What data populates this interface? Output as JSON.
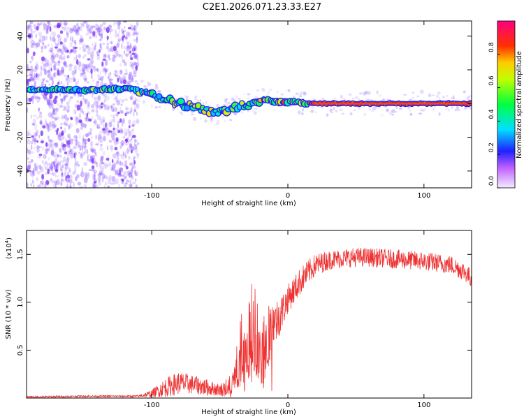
{
  "title": "C2E1.2026.071.23.33.E27",
  "colors": {
    "snr_line": "#ee3333",
    "frame": "#000000",
    "spectro_scatter": "#7a3cff"
  },
  "chart_data": [
    {
      "type": "heatmap",
      "name": "spectrogram",
      "xlabel": "Height of straight line (km)",
      "ylabel": "Frequency (Hz)",
      "xlim": [
        -192,
        135
      ],
      "ylim": [
        -50,
        49
      ],
      "xticks": [
        -100,
        0,
        100
      ],
      "yticks": [
        -40,
        -20,
        0,
        20,
        40
      ],
      "ridge_x": [
        -192,
        -170,
        -150,
        -130,
        -120,
        -110,
        -100,
        -90,
        -80,
        -70,
        -60,
        -55,
        -50,
        -45,
        -40,
        -35,
        -30,
        -25,
        -20,
        -10,
        0,
        10,
        20,
        40,
        60,
        80,
        100,
        120,
        135
      ],
      "ridge_freq": [
        8,
        8,
        8,
        8.5,
        9,
        8,
        5,
        2,
        0,
        -2,
        -4,
        -5,
        -5,
        -4,
        -2,
        -1,
        -1,
        1,
        2,
        1.5,
        1,
        0.5,
        0,
        0,
        0,
        0,
        0,
        0,
        0
      ],
      "colorbar": {
        "label": "Normalized spectral amplitude",
        "range": [
          0,
          1
        ],
        "ticks": [
          "0.0",
          "0.2",
          "0.4",
          "0.6",
          "0.8"
        ],
        "tick_values": [
          0,
          0.2,
          0.4,
          0.6,
          0.8
        ],
        "stops": [
          {
            "v": 0.0,
            "c": "#f2ecff"
          },
          {
            "v": 0.12,
            "c": "#c060ff"
          },
          {
            "v": 0.22,
            "c": "#2020ff"
          },
          {
            "v": 0.35,
            "c": "#00e0ff"
          },
          {
            "v": 0.5,
            "c": "#00ff40"
          },
          {
            "v": 0.65,
            "c": "#c0ff00"
          },
          {
            "v": 0.75,
            "c": "#ffcc00"
          },
          {
            "v": 0.85,
            "c": "#ff3000"
          },
          {
            "v": 1.0,
            "c": "#ff0080"
          }
        ]
      }
    },
    {
      "type": "line",
      "name": "snr",
      "xlabel": "Height of straight line (km)",
      "ylabel": "SNR (10 * v/v)",
      "multiplier": "(x10",
      "multiplier_exp": "4",
      "xlim": [
        -192,
        135
      ],
      "ylim": [
        0,
        1.75
      ],
      "xticks": [
        -100,
        0,
        100
      ],
      "yticks": [
        0.5,
        1.0,
        1.5
      ],
      "ytick_labels": [
        "0.5",
        "1.0",
        "1.5"
      ],
      "envelope_x": [
        -192,
        -150,
        -110,
        -100,
        -90,
        -80,
        -70,
        -60,
        -50,
        -40,
        -35,
        -30,
        -25,
        -20,
        -15,
        -10,
        -5,
        0,
        10,
        20,
        30,
        40,
        50,
        60,
        70,
        80,
        90,
        100,
        110,
        120,
        130,
        135
      ],
      "envelope_y": [
        0.01,
        0.02,
        0.02,
        0.05,
        0.12,
        0.17,
        0.15,
        0.12,
        0.09,
        0.15,
        0.45,
        0.75,
        0.8,
        0.5,
        0.65,
        0.8,
        0.9,
        1.05,
        1.25,
        1.4,
        1.45,
        1.47,
        1.48,
        1.48,
        1.47,
        1.46,
        1.45,
        1.44,
        1.42,
        1.4,
        1.33,
        1.25
      ],
      "noise": [
        0.01,
        0.01,
        0.01,
        0.04,
        0.1,
        0.12,
        0.1,
        0.09,
        0.06,
        0.15,
        0.4,
        0.5,
        0.5,
        0.4,
        0.35,
        0.25,
        0.2,
        0.15,
        0.14,
        0.12,
        0.1,
        0.1,
        0.1,
        0.1,
        0.1,
        0.1,
        0.1,
        0.1,
        0.1,
        0.1,
        0.1,
        0.1
      ]
    }
  ]
}
